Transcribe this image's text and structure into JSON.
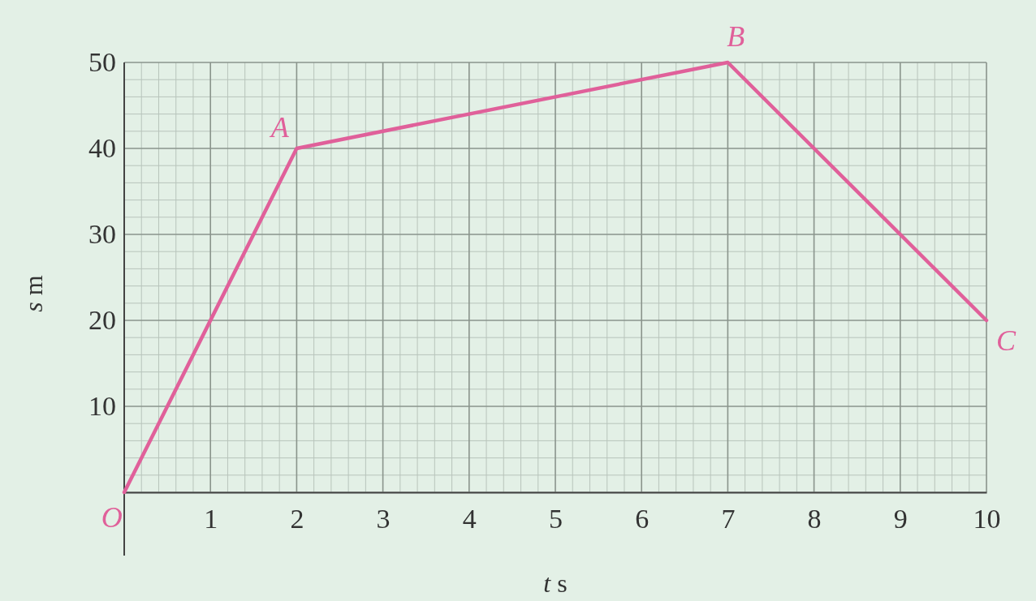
{
  "chart_data": {
    "type": "line",
    "xlabel": "t s",
    "ylabel": "s m",
    "x": [
      0,
      2,
      7,
      10
    ],
    "series": [
      {
        "color": "#e0609a",
        "values": [
          0,
          40,
          50,
          20
        ]
      }
    ],
    "xlim": [
      0,
      10
    ],
    "ylim": [
      0,
      50
    ],
    "xticks": [
      {
        "value": 0,
        "label": null
      },
      1,
      2,
      3,
      4,
      5,
      6,
      7,
      8,
      9,
      10
    ],
    "yticks": [
      {
        "value": 0,
        "label": null
      },
      10,
      20,
      30,
      40,
      50
    ],
    "grid": true,
    "marker": "none",
    "line_style": "solid",
    "annotations": [
      {
        "text": "O",
        "x": 0,
        "y": 0
      },
      {
        "text": "A",
        "x": 2,
        "y": 40
      },
      {
        "text": "B",
        "x": 7,
        "y": 50
      },
      {
        "text": "C",
        "x": 10,
        "y": 20
      }
    ]
  }
}
